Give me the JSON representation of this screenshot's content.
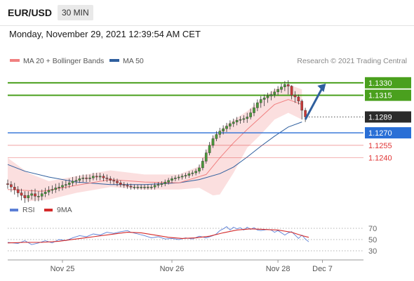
{
  "header": {
    "symbol": "EUR/USD",
    "timeframe": "30 MIN",
    "datetime": "Monday, November 29, 2021 12:39:54 AM CET"
  },
  "legend": {
    "ma20": "MA 20 + Bollinger Bands",
    "ma50": "MA 50",
    "credit": "Research © 2021 Trading Central",
    "ma20_color": "#f08080",
    "ma50_color": "#2f5f9e"
  },
  "chart_data": [
    {
      "type": "candlestick",
      "y_range": [
        1.1185,
        1.1345
      ],
      "x_range": [
        0,
        104
      ],
      "levels": [
        {
          "value": 1.133,
          "label": "1.1330",
          "color": "#4aa01e"
        },
        {
          "value": 1.1315,
          "label": "1.1315",
          "color": "#4aa01e"
        },
        {
          "value": 1.1289,
          "label": "1.1289",
          "color": "#2b2b2b",
          "kind": "last_price"
        },
        {
          "value": 1.127,
          "label": "1.1270",
          "color": "#2a6fd6"
        },
        {
          "value": 1.1255,
          "label": "1.1255",
          "color": "#e03535"
        },
        {
          "value": 1.124,
          "label": "1.1240",
          "color": "#e03535"
        }
      ],
      "x_tick_labels": [
        {
          "label": "Nov 25",
          "x": 16
        },
        {
          "label": "Nov 26",
          "x": 48
        },
        {
          "label": "Nov 28",
          "x": 79
        },
        {
          "label": "Dec 7",
          "x": 92
        }
      ],
      "ma20": [
        [
          0,
          1.1202
        ],
        [
          10,
          1.12
        ],
        [
          20,
          1.1207
        ],
        [
          30,
          1.1214
        ],
        [
          40,
          1.1211
        ],
        [
          50,
          1.121
        ],
        [
          58,
          1.122
        ],
        [
          62,
          1.124
        ],
        [
          66,
          1.1258
        ],
        [
          70,
          1.1274
        ],
        [
          74,
          1.1289
        ],
        [
          78,
          1.1304
        ],
        [
          82,
          1.131
        ],
        [
          86,
          1.1304
        ]
      ],
      "ma50": [
        [
          0,
          1.1232
        ],
        [
          5,
          1.1224
        ],
        [
          12,
          1.1217
        ],
        [
          20,
          1.1211
        ],
        [
          30,
          1.1208
        ],
        [
          40,
          1.1208
        ],
        [
          50,
          1.121
        ],
        [
          56,
          1.1214
        ],
        [
          62,
          1.1221
        ],
        [
          66,
          1.1229
        ],
        [
          70,
          1.1241
        ],
        [
          74,
          1.1254
        ],
        [
          78,
          1.1266
        ],
        [
          82,
          1.1277
        ],
        [
          86,
          1.1283
        ]
      ],
      "bollinger_upper": [
        [
          0,
          1.124
        ],
        [
          6,
          1.1222
        ],
        [
          12,
          1.1212
        ],
        [
          20,
          1.1218
        ],
        [
          30,
          1.1225
        ],
        [
          40,
          1.122
        ],
        [
          50,
          1.122
        ],
        [
          56,
          1.123
        ],
        [
          60,
          1.1265
        ],
        [
          64,
          1.128
        ],
        [
          70,
          1.1296
        ],
        [
          74,
          1.131
        ],
        [
          78,
          1.1322
        ],
        [
          82,
          1.1328
        ],
        [
          86,
          1.1322
        ]
      ],
      "bollinger_lower": [
        [
          0,
          1.121
        ],
        [
          6,
          1.1188
        ],
        [
          12,
          1.119
        ],
        [
          20,
          1.1198
        ],
        [
          30,
          1.1205
        ],
        [
          40,
          1.1202
        ],
        [
          50,
          1.1202
        ],
        [
          56,
          1.1204
        ],
        [
          60,
          1.1195
        ],
        [
          62,
          1.1196
        ],
        [
          66,
          1.1222
        ],
        [
          70,
          1.1252
        ],
        [
          74,
          1.1268
        ],
        [
          78,
          1.1286
        ],
        [
          82,
          1.1294
        ],
        [
          86,
          1.1286
        ]
      ],
      "forecast_arrow": {
        "from": [
          87,
          1.1286
        ],
        "to": [
          93,
          1.1329
        ]
      },
      "candles": [
        [
          1.1209,
          1.1208,
          1.1214,
          1.1203
        ],
        [
          1.1208,
          1.1205,
          1.1212,
          1.1199
        ],
        [
          1.1205,
          1.1202,
          1.121,
          1.1196
        ],
        [
          1.1202,
          1.1198,
          1.1206,
          1.1193
        ],
        [
          1.1198,
          1.1195,
          1.1203,
          1.1189
        ],
        [
          1.1195,
          1.1192,
          1.12,
          1.1186
        ],
        [
          1.1192,
          1.1195,
          1.12,
          1.1187
        ],
        [
          1.1195,
          1.1197,
          1.1202,
          1.119
        ],
        [
          1.1197,
          1.1194,
          1.1203,
          1.1188
        ],
        [
          1.1194,
          1.1194,
          1.12,
          1.1188
        ],
        [
          1.1194,
          1.1197,
          1.1202,
          1.1189
        ],
        [
          1.1197,
          1.1199,
          1.1204,
          1.1193
        ],
        [
          1.1199,
          1.1201,
          1.1206,
          1.1195
        ],
        [
          1.1201,
          1.1202,
          1.1207,
          1.1197
        ],
        [
          1.1202,
          1.1204,
          1.1209,
          1.1198
        ],
        [
          1.1204,
          1.1205,
          1.121,
          1.12
        ],
        [
          1.1205,
          1.1207,
          1.1212,
          1.1201
        ],
        [
          1.1207,
          1.1208,
          1.1213,
          1.1203
        ],
        [
          1.1208,
          1.121,
          1.1215,
          1.1204
        ],
        [
          1.121,
          1.1212,
          1.1217,
          1.1206
        ],
        [
          1.1212,
          1.1213,
          1.1218,
          1.1208
        ],
        [
          1.1213,
          1.1215,
          1.1219,
          1.121
        ],
        [
          1.1215,
          1.1216,
          1.122,
          1.1211
        ],
        [
          1.1216,
          1.1215,
          1.122,
          1.1211
        ],
        [
          1.1215,
          1.1216,
          1.122,
          1.1211
        ],
        [
          1.1216,
          1.1218,
          1.1222,
          1.1213
        ],
        [
          1.1218,
          1.1217,
          1.1222,
          1.1213
        ],
        [
          1.1217,
          1.1218,
          1.1222,
          1.1213
        ],
        [
          1.1218,
          1.1216,
          1.1221,
          1.1212
        ],
        [
          1.1216,
          1.1215,
          1.122,
          1.1211
        ],
        [
          1.1215,
          1.1213,
          1.1218,
          1.1209
        ],
        [
          1.1213,
          1.1212,
          1.1216,
          1.1208
        ],
        [
          1.1212,
          1.121,
          1.1215,
          1.1206
        ],
        [
          1.121,
          1.1208,
          1.1213,
          1.1205
        ],
        [
          1.1208,
          1.1207,
          1.1211,
          1.1204
        ],
        [
          1.1207,
          1.1206,
          1.121,
          1.1203
        ],
        [
          1.1206,
          1.1205,
          1.1209,
          1.1202
        ],
        [
          1.1205,
          1.1205,
          1.1208,
          1.1202
        ],
        [
          1.1205,
          1.1205,
          1.1208,
          1.1202
        ],
        [
          1.1205,
          1.1205,
          1.1208,
          1.1202
        ],
        [
          1.1205,
          1.1205,
          1.1208,
          1.1202
        ],
        [
          1.1205,
          1.1205,
          1.1208,
          1.1202
        ],
        [
          1.1205,
          1.1205,
          1.1208,
          1.1202
        ],
        [
          1.1205,
          1.1207,
          1.121,
          1.1202
        ],
        [
          1.1207,
          1.1208,
          1.1211,
          1.1204
        ],
        [
          1.1208,
          1.1209,
          1.1212,
          1.1205
        ],
        [
          1.1209,
          1.1211,
          1.1214,
          1.1206
        ],
        [
          1.1211,
          1.1213,
          1.1216,
          1.1208
        ],
        [
          1.1213,
          1.1215,
          1.1218,
          1.121
        ],
        [
          1.1215,
          1.1216,
          1.1219,
          1.1212
        ],
        [
          1.1216,
          1.1217,
          1.122,
          1.1213
        ],
        [
          1.1217,
          1.1218,
          1.1221,
          1.1214
        ],
        [
          1.1218,
          1.1219,
          1.1222,
          1.1215
        ],
        [
          1.1219,
          1.1221,
          1.1224,
          1.1216
        ],
        [
          1.1221,
          1.1222,
          1.1225,
          1.1218
        ],
        [
          1.1222,
          1.1224,
          1.1227,
          1.1219
        ],
        [
          1.1224,
          1.1228,
          1.1232,
          1.1221
        ],
        [
          1.1228,
          1.1236,
          1.124,
          1.1225
        ],
        [
          1.1236,
          1.1246,
          1.125,
          1.1233
        ],
        [
          1.1246,
          1.1255,
          1.1259,
          1.1243
        ],
        [
          1.1255,
          1.1263,
          1.1267,
          1.1252
        ],
        [
          1.1263,
          1.1268,
          1.1272,
          1.126
        ],
        [
          1.1268,
          1.1272,
          1.1276,
          1.1264
        ],
        [
          1.1272,
          1.1275,
          1.1279,
          1.1268
        ],
        [
          1.1275,
          1.1278,
          1.1282,
          1.1271
        ],
        [
          1.1278,
          1.1281,
          1.1285,
          1.1274
        ],
        [
          1.1281,
          1.1283,
          1.1287,
          1.1277
        ],
        [
          1.1283,
          1.1285,
          1.1289,
          1.1279
        ],
        [
          1.1285,
          1.1286,
          1.129,
          1.1281
        ],
        [
          1.1286,
          1.1287,
          1.1291,
          1.1282
        ],
        [
          1.1287,
          1.1289,
          1.1294,
          1.1282
        ],
        [
          1.1289,
          1.1294,
          1.1299,
          1.1286
        ],
        [
          1.1294,
          1.13,
          1.1306,
          1.129
        ],
        [
          1.13,
          1.1306,
          1.131,
          1.1296
        ],
        [
          1.1306,
          1.131,
          1.1314,
          1.13
        ],
        [
          1.131,
          1.1312,
          1.1316,
          1.1302
        ],
        [
          1.1312,
          1.1314,
          1.1318,
          1.1306
        ],
        [
          1.1314,
          1.1316,
          1.132,
          1.1309
        ],
        [
          1.1316,
          1.1319,
          1.1323,
          1.1312
        ],
        [
          1.1319,
          1.1322,
          1.1326,
          1.1315
        ],
        [
          1.1322,
          1.1325,
          1.1329,
          1.1318
        ],
        [
          1.1325,
          1.1328,
          1.1332,
          1.132
        ],
        [
          1.1328,
          1.1326,
          1.1333,
          1.1316
        ],
        [
          1.1326,
          1.1315,
          1.1327,
          1.131
        ],
        [
          1.1315,
          1.1313,
          1.132,
          1.1306
        ],
        [
          1.1313,
          1.1308,
          1.1316,
          1.1304
        ],
        [
          1.1308,
          1.1297,
          1.131,
          1.1286
        ],
        [
          1.1297,
          1.1289,
          1.13,
          1.1283
        ]
      ]
    },
    {
      "type": "line",
      "y_range": [
        20,
        85
      ],
      "x_range": [
        0,
        104
      ],
      "y_tick_labels": [
        {
          "value": 70,
          "label": "70"
        },
        {
          "value": 50,
          "label": "50"
        },
        {
          "value": 30,
          "label": "30"
        }
      ],
      "legend": [
        {
          "label": "RSI",
          "color": "#5b7fd6"
        },
        {
          "label": "9MA",
          "color": "#d42a2a"
        }
      ],
      "series": [
        {
          "name": "RSI",
          "color": "#5b7fd6",
          "points": [
            [
              0,
              45
            ],
            [
              3,
              43
            ],
            [
              5,
              48
            ],
            [
              7,
              41
            ],
            [
              9,
              44
            ],
            [
              11,
              48
            ],
            [
              13,
              44
            ],
            [
              15,
              50
            ],
            [
              17,
              48
            ],
            [
              19,
              53
            ],
            [
              21,
              57
            ],
            [
              23,
              55
            ],
            [
              25,
              60
            ],
            [
              27,
              58
            ],
            [
              29,
              63
            ],
            [
              31,
              61
            ],
            [
              33,
              64
            ],
            [
              35,
              66
            ],
            [
              36,
              63
            ],
            [
              38,
              60
            ],
            [
              40,
              57
            ],
            [
              42,
              53
            ],
            [
              44,
              55
            ],
            [
              46,
              51
            ],
            [
              48,
              52
            ],
            [
              50,
              50
            ],
            [
              52,
              53
            ],
            [
              54,
              51
            ],
            [
              56,
              56
            ],
            [
              58,
              53
            ],
            [
              60,
              57
            ],
            [
              61,
              60
            ],
            [
              62,
              66
            ],
            [
              63,
              69
            ],
            [
              64,
              73
            ],
            [
              65,
              67
            ],
            [
              66,
              72
            ],
            [
              67,
              69
            ],
            [
              68,
              71
            ],
            [
              69,
              67
            ],
            [
              70,
              72
            ],
            [
              71,
              68
            ],
            [
              72,
              71
            ],
            [
              73,
              67
            ],
            [
              74,
              66
            ],
            [
              76,
              68
            ],
            [
              77,
              67
            ],
            [
              78,
              63
            ],
            [
              79,
              66
            ],
            [
              80,
              62
            ],
            [
              81,
              58
            ],
            [
              82,
              62
            ],
            [
              83,
              64
            ],
            [
              84,
              58
            ],
            [
              85,
              52
            ],
            [
              86,
              58
            ],
            [
              87,
              51
            ],
            [
              88,
              46
            ]
          ]
        },
        {
          "name": "9MA",
          "color": "#d42a2a",
          "points": [
            [
              0,
              44
            ],
            [
              5,
              45
            ],
            [
              10,
              45
            ],
            [
              15,
              47
            ],
            [
              20,
              51
            ],
            [
              25,
              55
            ],
            [
              30,
              59
            ],
            [
              35,
              63
            ],
            [
              39,
              62
            ],
            [
              43,
              58
            ],
            [
              47,
              54
            ],
            [
              51,
              52
            ],
            [
              55,
              53
            ],
            [
              59,
              56
            ],
            [
              63,
              62
            ],
            [
              67,
              67
            ],
            [
              71,
              69
            ],
            [
              75,
              68
            ],
            [
              79,
              67
            ],
            [
              83,
              63
            ],
            [
              86,
              57
            ],
            [
              88,
              54
            ]
          ]
        }
      ]
    }
  ]
}
